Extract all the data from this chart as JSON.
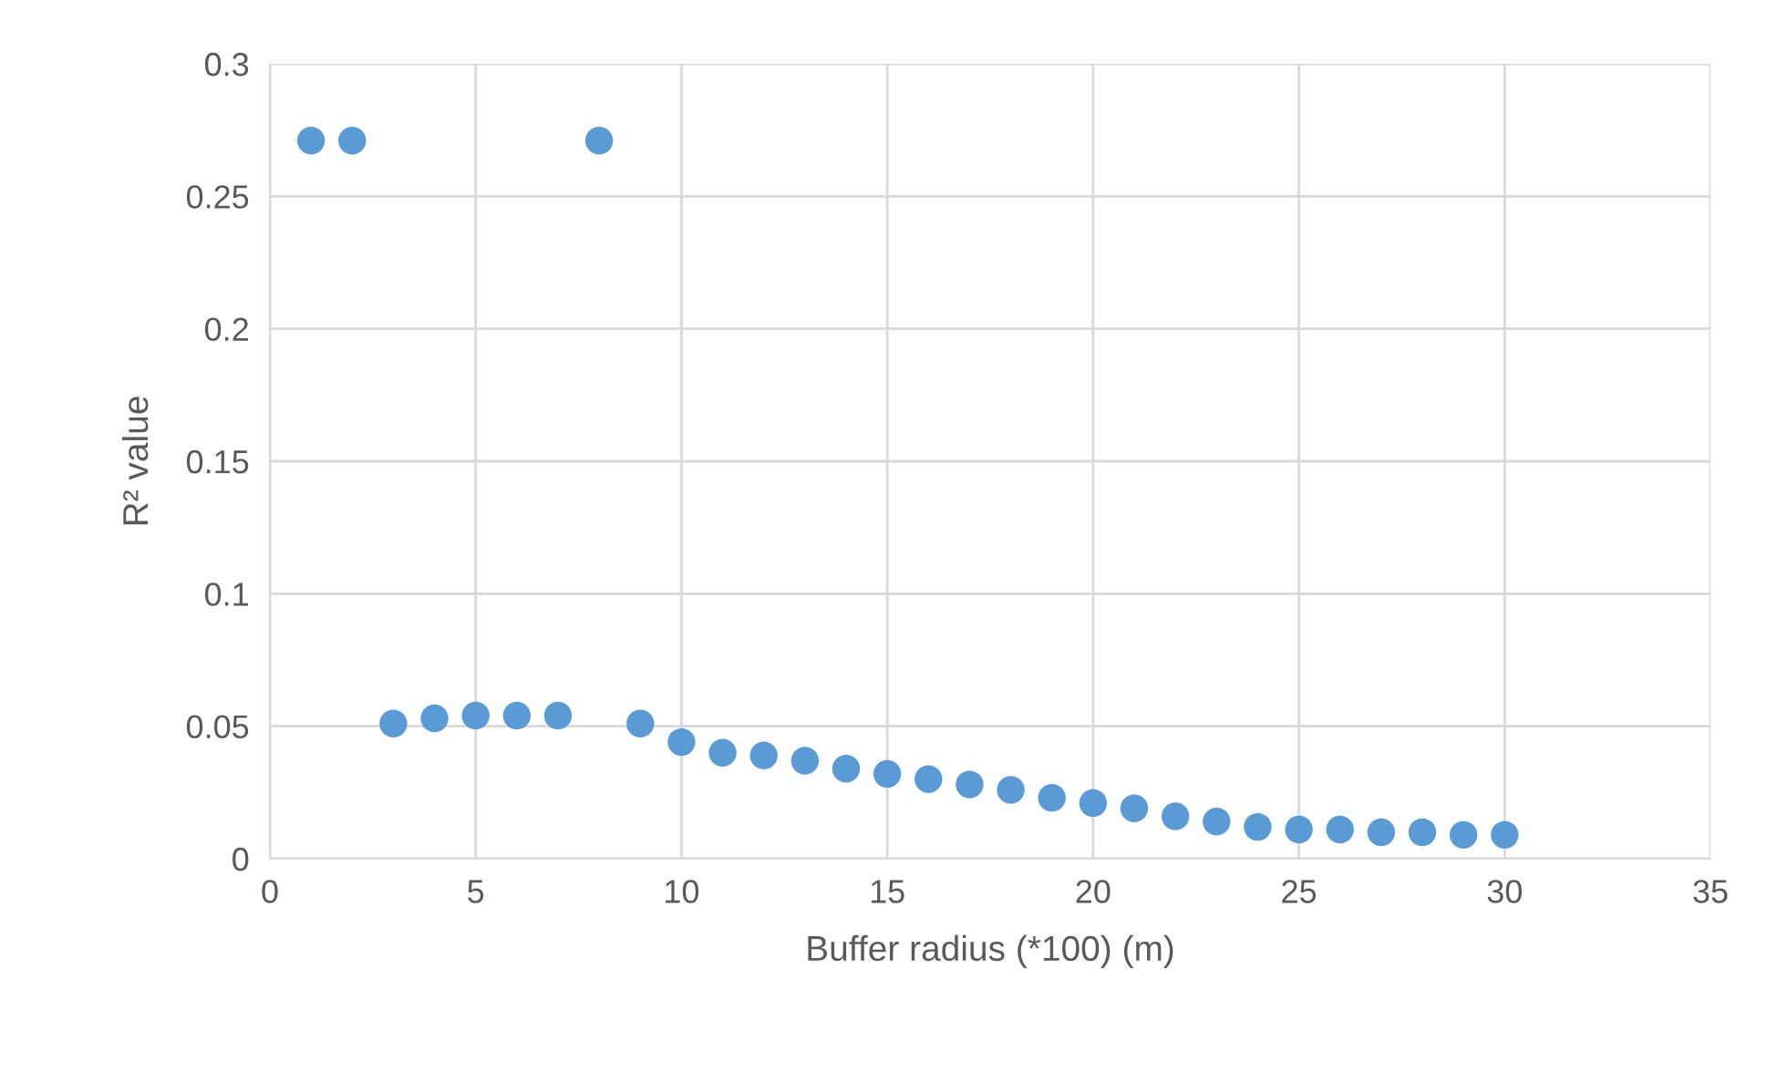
{
  "chart_data": {
    "type": "scatter",
    "xlabel": "Buffer radius (*100) (m)",
    "ylabel": "R² value",
    "x": [
      1,
      2,
      3,
      4,
      5,
      6,
      7,
      8,
      9,
      10,
      11,
      12,
      13,
      14,
      15,
      16,
      17,
      18,
      19,
      20,
      21,
      22,
      23,
      24,
      25,
      26,
      27,
      28,
      29,
      30
    ],
    "series": [
      {
        "color": "#5b9bd5",
        "values": [
          0.271,
          0.271,
          0.051,
          0.053,
          0.054,
          0.054,
          0.054,
          0.271,
          0.051,
          0.044,
          0.04,
          0.039,
          0.037,
          0.034,
          0.032,
          0.03,
          0.028,
          0.026,
          0.023,
          0.021,
          0.019,
          0.016,
          0.014,
          0.012,
          0.011,
          0.011,
          0.01,
          0.01,
          0.009,
          0.009
        ]
      }
    ],
    "xlim": [
      0,
      35
    ],
    "xticks": [
      0,
      5,
      10,
      15,
      20,
      25,
      30,
      35
    ],
    "ylim": [
      0,
      0.3
    ],
    "yticks": [
      {
        "value": 0,
        "label": "0"
      },
      0.05,
      0.1,
      0.15,
      0.2,
      0.25,
      0.3
    ],
    "grid": true,
    "marker": "circle"
  }
}
